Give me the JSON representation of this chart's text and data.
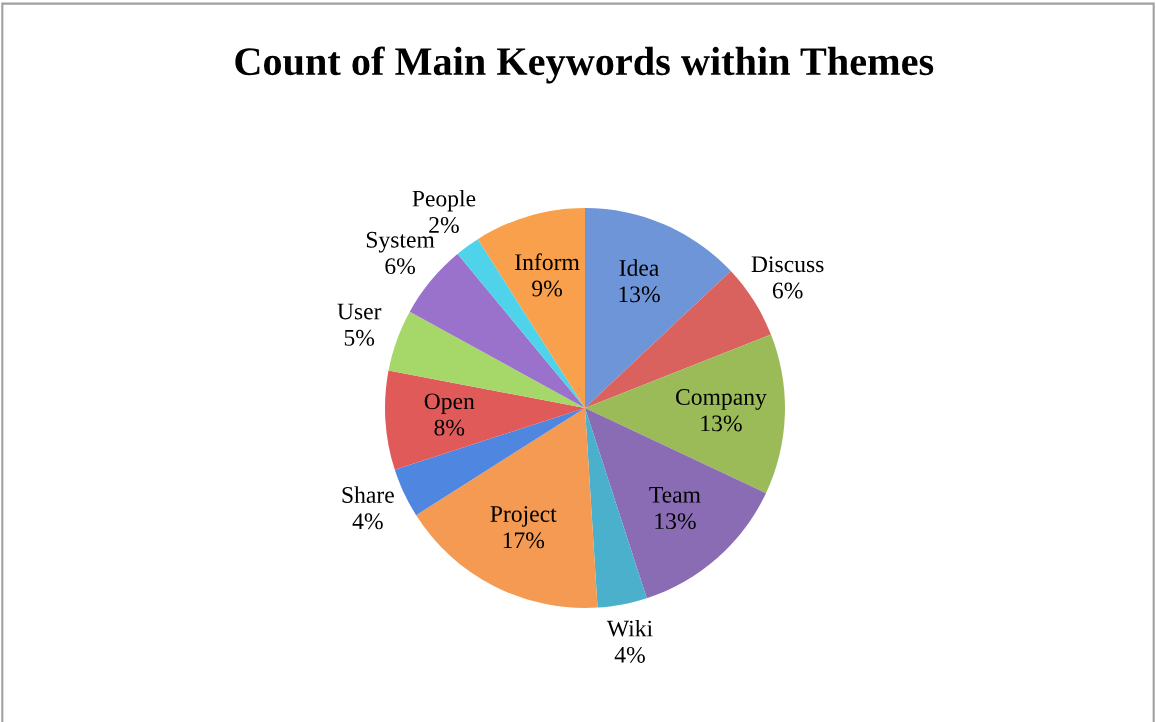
{
  "chart_data": {
    "type": "pie",
    "title": "Count of Main Keywords within Themes",
    "categories": [
      "Idea",
      "Discuss",
      "Company",
      "Team",
      "Wiki",
      "Project",
      "Share",
      "Open",
      "User",
      "System",
      "People",
      "Inform"
    ],
    "values": [
      13,
      6,
      13,
      13,
      4,
      17,
      4,
      8,
      5,
      6,
      2,
      9
    ],
    "value_labels": [
      "13%",
      "6%",
      "13%",
      "13%",
      "4%",
      "17%",
      "4%",
      "8%",
      "5%",
      "6%",
      "2%",
      "9%"
    ],
    "colors": [
      "#6f95d9",
      "#d9625e",
      "#9bbb59",
      "#8a6cb5",
      "#4bb0cb",
      "#f59a52",
      "#4f86e0",
      "#e05a5a",
      "#a5d868",
      "#9a72cc",
      "#4fd3ea",
      "#f9a04c"
    ],
    "legend": false
  }
}
